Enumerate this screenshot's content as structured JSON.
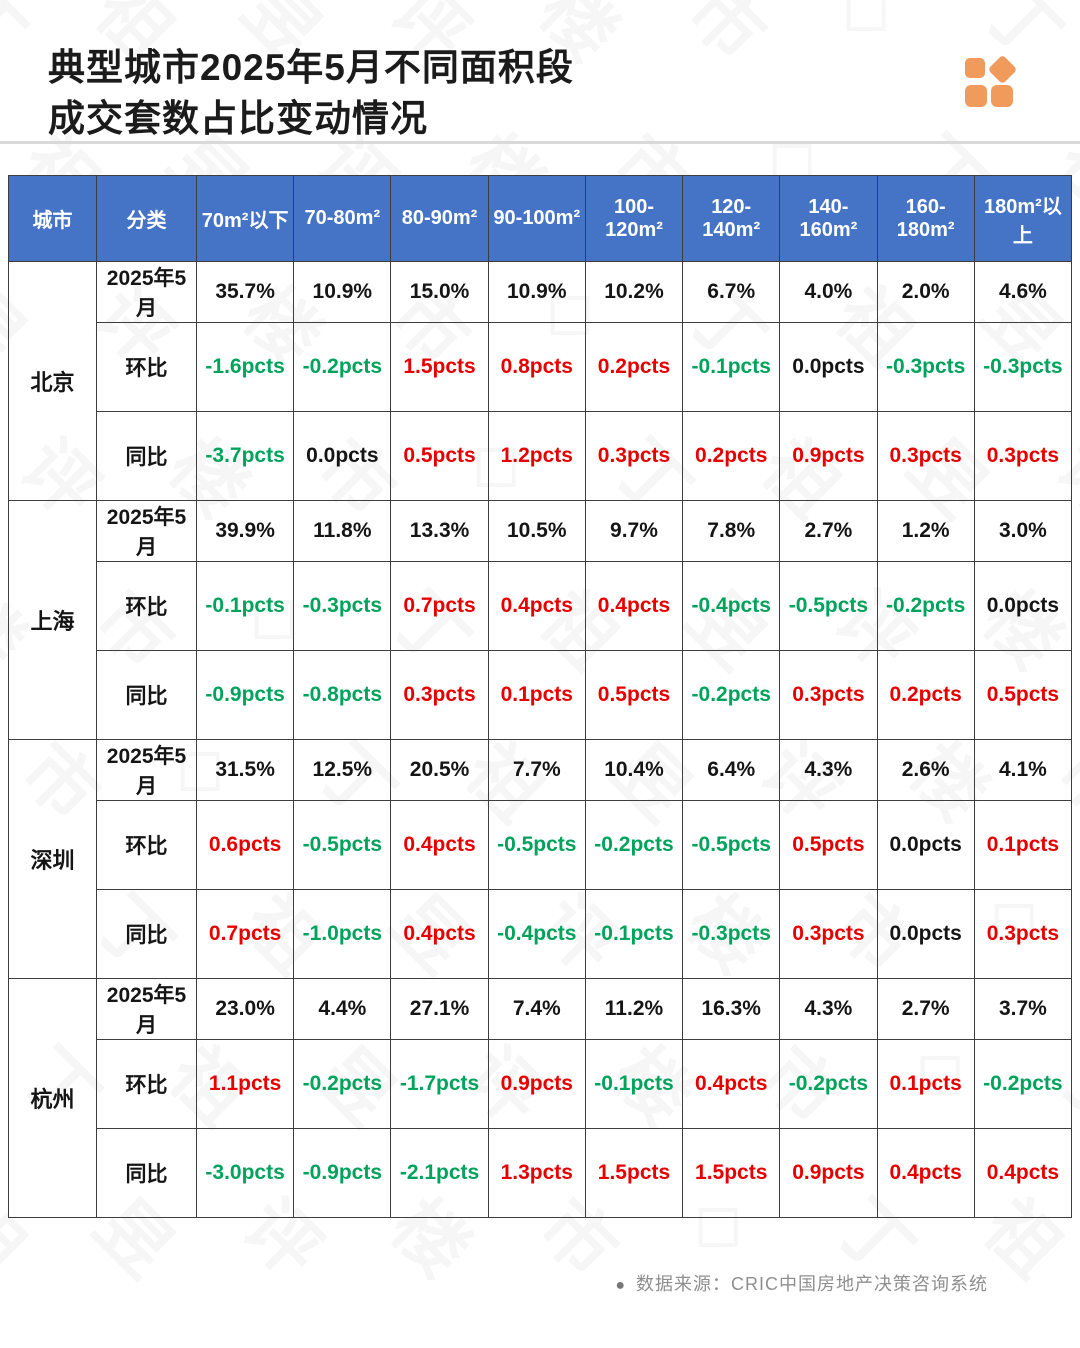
{
  "title": {
    "line1": "典型城市2025年5月不同面积段",
    "line2": "成交套数占比变动情况"
  },
  "table": {
    "col_headers": [
      "城市",
      "分类",
      "70m²以下",
      "70-80m²",
      "80-90m²",
      "90-100m²",
      "100-120m²",
      "120-140m²",
      "140-160m²",
      "160-180m²",
      "180m²以上"
    ],
    "row_labels": {
      "month": "2025年5月",
      "mom": "环比",
      "yoy": "同比"
    },
    "cities": [
      {
        "name": "北京",
        "month": [
          "35.7%",
          "10.9%",
          "15.0%",
          "10.9%",
          "10.2%",
          "6.7%",
          "4.0%",
          "2.0%",
          "4.6%"
        ],
        "mom": [
          "-1.6pcts",
          "-0.2pcts",
          "1.5pcts",
          "0.8pcts",
          "0.2pcts",
          "-0.1pcts",
          "0.0pcts",
          "-0.3pcts",
          "-0.3pcts"
        ],
        "mom_cls": [
          "down",
          "down",
          "up",
          "up",
          "up",
          "down",
          "flat",
          "down",
          "down"
        ],
        "yoy": [
          "-3.7pcts",
          "0.0pcts",
          "0.5pcts",
          "1.2pcts",
          "0.3pcts",
          "0.2pcts",
          "0.9pcts",
          "0.3pcts",
          "0.3pcts"
        ],
        "yoy_cls": [
          "down",
          "flat",
          "up",
          "up",
          "up",
          "up",
          "up",
          "up",
          "up"
        ]
      },
      {
        "name": "上海",
        "month": [
          "39.9%",
          "11.8%",
          "13.3%",
          "10.5%",
          "9.7%",
          "7.8%",
          "2.7%",
          "1.2%",
          "3.0%"
        ],
        "mom": [
          "-0.1pcts",
          "-0.3pcts",
          "0.7pcts",
          "0.4pcts",
          "0.4pcts",
          "-0.4pcts",
          "-0.5pcts",
          "-0.2pcts",
          "0.0pcts"
        ],
        "mom_cls": [
          "down",
          "down",
          "up",
          "up",
          "up",
          "down",
          "down",
          "down",
          "flat"
        ],
        "yoy": [
          "-0.9pcts",
          "-0.8pcts",
          "0.3pcts",
          "0.1pcts",
          "0.5pcts",
          "-0.2pcts",
          "0.3pcts",
          "0.2pcts",
          "0.5pcts"
        ],
        "yoy_cls": [
          "down",
          "down",
          "up",
          "up",
          "up",
          "down",
          "up",
          "up",
          "up"
        ]
      },
      {
        "name": "深圳",
        "month": [
          "31.5%",
          "12.5%",
          "20.5%",
          "7.7%",
          "10.4%",
          "6.4%",
          "4.3%",
          "2.6%",
          "4.1%"
        ],
        "mom": [
          "0.6pcts",
          "-0.5pcts",
          "0.4pcts",
          "-0.5pcts",
          "-0.2pcts",
          "-0.5pcts",
          "0.5pcts",
          "0.0pcts",
          "0.1pcts"
        ],
        "mom_cls": [
          "up",
          "down",
          "up",
          "down",
          "down",
          "down",
          "up",
          "flat",
          "up"
        ],
        "yoy": [
          "0.7pcts",
          "-1.0pcts",
          "0.4pcts",
          "-0.4pcts",
          "-0.1pcts",
          "-0.3pcts",
          "0.3pcts",
          "0.0pcts",
          "0.3pcts"
        ],
        "yoy_cls": [
          "up",
          "down",
          "up",
          "down",
          "down",
          "down",
          "up",
          "flat",
          "up"
        ]
      },
      {
        "name": "杭州",
        "month": [
          "23.0%",
          "4.4%",
          "27.1%",
          "7.4%",
          "11.2%",
          "16.3%",
          "4.3%",
          "2.7%",
          "3.7%"
        ],
        "mom": [
          "1.1pcts",
          "-0.2pcts",
          "-1.7pcts",
          "0.9pcts",
          "-0.1pcts",
          "0.4pcts",
          "-0.2pcts",
          "0.1pcts",
          "-0.2pcts"
        ],
        "mom_cls": [
          "up",
          "down",
          "down",
          "up",
          "down",
          "up",
          "down",
          "up",
          "down"
        ],
        "yoy": [
          "-3.0pcts",
          "-0.9pcts",
          "-2.1pcts",
          "1.3pcts",
          "1.5pcts",
          "1.5pcts",
          "0.9pcts",
          "0.4pcts",
          "0.4pcts"
        ],
        "yoy_cls": [
          "down",
          "down",
          "down",
          "up",
          "up",
          "up",
          "up",
          "up",
          "up"
        ]
      }
    ]
  },
  "footer": {
    "bullet": "●",
    "source": "数据来源：CRIC中国房地产决策咨询系统"
  },
  "colors": {
    "header_bg": "#4573C5",
    "up_red": "#E60000",
    "down_green": "#00A35C",
    "logo_orange": "#F09A5C"
  },
  "watermark": {
    "glyphs": "丁祖昱评楼市◇"
  },
  "chart_data": {
    "type": "table",
    "title": "典型城市2025年5月不同面积段成交套数占比变动情况",
    "columns": [
      "70m²以下",
      "70-80m²",
      "80-90m²",
      "90-100m²",
      "100-120m²",
      "120-140m²",
      "140-160m²",
      "160-180m²",
      "180m²以上"
    ],
    "rows": [
      {
        "city": "北京",
        "metric": "2025年5月",
        "unit": "%",
        "values": [
          35.7,
          10.9,
          15.0,
          10.9,
          10.2,
          6.7,
          4.0,
          2.0,
          4.6
        ]
      },
      {
        "city": "北京",
        "metric": "环比",
        "unit": "pcts",
        "values": [
          -1.6,
          -0.2,
          1.5,
          0.8,
          0.2,
          -0.1,
          0.0,
          -0.3,
          -0.3
        ]
      },
      {
        "city": "北京",
        "metric": "同比",
        "unit": "pcts",
        "values": [
          -3.7,
          0.0,
          0.5,
          1.2,
          0.3,
          0.2,
          0.9,
          0.3,
          0.3
        ]
      },
      {
        "city": "上海",
        "metric": "2025年5月",
        "unit": "%",
        "values": [
          39.9,
          11.8,
          13.3,
          10.5,
          9.7,
          7.8,
          2.7,
          1.2,
          3.0
        ]
      },
      {
        "city": "上海",
        "metric": "环比",
        "unit": "pcts",
        "values": [
          -0.1,
          -0.3,
          0.7,
          0.4,
          0.4,
          -0.4,
          -0.5,
          -0.2,
          0.0
        ]
      },
      {
        "city": "上海",
        "metric": "同比",
        "unit": "pcts",
        "values": [
          -0.9,
          -0.8,
          0.3,
          0.1,
          0.5,
          -0.2,
          0.3,
          0.2,
          0.5
        ]
      },
      {
        "city": "深圳",
        "metric": "2025年5月",
        "unit": "%",
        "values": [
          31.5,
          12.5,
          20.5,
          7.7,
          10.4,
          6.4,
          4.3,
          2.6,
          4.1
        ]
      },
      {
        "city": "深圳",
        "metric": "环比",
        "unit": "pcts",
        "values": [
          0.6,
          -0.5,
          0.4,
          -0.5,
          -0.2,
          -0.5,
          0.5,
          0.0,
          0.1
        ]
      },
      {
        "city": "深圳",
        "metric": "同比",
        "unit": "pcts",
        "values": [
          0.7,
          -1.0,
          0.4,
          -0.4,
          -0.1,
          -0.3,
          0.3,
          0.0,
          0.3
        ]
      },
      {
        "city": "杭州",
        "metric": "2025年5月",
        "unit": "%",
        "values": [
          23.0,
          4.4,
          27.1,
          7.4,
          11.2,
          16.3,
          4.3,
          2.7,
          3.7
        ]
      },
      {
        "city": "杭州",
        "metric": "环比",
        "unit": "pcts",
        "values": [
          1.1,
          -0.2,
          -1.7,
          0.9,
          -0.1,
          0.4,
          -0.2,
          0.1,
          -0.2
        ]
      },
      {
        "city": "杭州",
        "metric": "同比",
        "unit": "pcts",
        "values": [
          -3.0,
          -0.9,
          -2.1,
          1.3,
          1.5,
          1.5,
          0.9,
          0.4,
          0.4
        ]
      }
    ]
  }
}
